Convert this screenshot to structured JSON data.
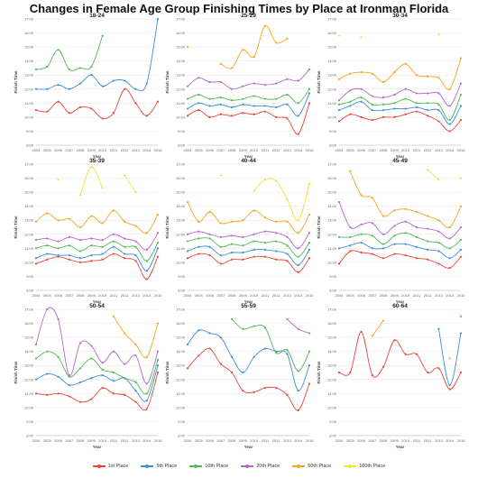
{
  "title": "Changes in Female Age Group Finishing Times by Place at Ironman Florida",
  "chart_data": {
    "type": "line",
    "x": [
      2004,
      2005,
      2006,
      2007,
      2008,
      2009,
      2010,
      2011,
      2012,
      2013,
      2014,
      2015
    ],
    "y_ticks": [
      "8:00",
      "9:00",
      "10:00",
      "11:00",
      "12:00",
      "13:00",
      "14:00",
      "15:00",
      "16:00",
      "17:00"
    ],
    "ylim": [
      8,
      17
    ],
    "xlabel": "Year",
    "ylabel": "Finish Time",
    "series_names": [
      "1st Place",
      "5th Place",
      "10th Place",
      "20th Place",
      "50th Place",
      "100th Place"
    ],
    "series_colors": [
      "#e8473b",
      "#3f8fd8",
      "#52b957",
      "#b46ac9",
      "#f5a623",
      "#f2e23a"
    ],
    "panels": [
      {
        "title": "18-24",
        "series": [
          [
            10.5,
            10.4,
            11.1,
            10.3,
            10.7,
            10.6,
            9.9,
            10.3,
            12.0,
            11.0,
            10.1,
            11.1
          ],
          [
            12.0,
            12.0,
            12.3,
            12.0,
            12.4,
            13.0,
            12.2,
            12.6,
            12.6,
            12.0,
            12.4,
            17.0
          ],
          [
            13.4,
            13.6,
            14.8,
            13.4,
            13.5,
            13.6,
            15.8,
            null,
            null,
            null,
            null,
            null
          ],
          [
            null,
            null,
            null,
            null,
            null,
            null,
            null,
            null,
            null,
            null,
            null,
            null
          ],
          [
            null,
            null,
            null,
            null,
            null,
            null,
            null,
            null,
            null,
            null,
            null,
            null
          ],
          [
            null,
            null,
            null,
            null,
            null,
            null,
            null,
            null,
            null,
            null,
            null,
            null
          ]
        ]
      },
      {
        "title": "25-29",
        "series": [
          [
            10.1,
            10.5,
            10.0,
            10.2,
            10.1,
            10.3,
            10.2,
            10.4,
            10.0,
            9.9,
            8.8,
            11.0
          ],
          [
            10.6,
            11.0,
            10.8,
            10.9,
            10.7,
            10.9,
            10.8,
            10.8,
            10.7,
            10.9,
            10.1,
            11.7
          ],
          [
            11.3,
            11.6,
            11.3,
            11.4,
            11.2,
            11.3,
            11.5,
            11.3,
            11.3,
            11.6,
            11.0,
            12.0
          ],
          [
            12.2,
            12.8,
            12.5,
            12.5,
            12.0,
            12.2,
            12.4,
            12.3,
            12.4,
            12.7,
            12.6,
            13.4
          ],
          [
            15.0,
            null,
            null,
            13.8,
            13.5,
            14.8,
            14.3,
            16.5,
            15.3,
            15.6,
            null,
            null
          ],
          [
            null,
            null,
            null,
            null,
            null,
            null,
            null,
            null,
            null,
            null,
            null,
            null
          ]
        ]
      },
      {
        "title": "30-34",
        "series": [
          [
            9.7,
            10.2,
            10.0,
            9.8,
            10.0,
            10.0,
            10.2,
            10.4,
            10.1,
            9.7,
            9.0,
            9.8
          ],
          [
            10.5,
            10.8,
            11.1,
            10.5,
            10.5,
            10.6,
            10.6,
            10.7,
            10.5,
            10.5,
            9.5,
            10.8
          ],
          [
            10.9,
            11.1,
            11.4,
            10.9,
            10.9,
            11.0,
            11.3,
            11.0,
            11.0,
            10.9,
            9.8,
            11.6
          ],
          [
            11.2,
            11.9,
            12.0,
            11.5,
            11.4,
            11.6,
            12.0,
            11.7,
            11.7,
            11.7,
            10.8,
            12.4
          ],
          [
            12.7,
            13.1,
            13.2,
            13.1,
            12.5,
            13.2,
            13.8,
            13.0,
            12.9,
            12.8,
            12.0,
            14.2
          ],
          [
            15.8,
            null,
            15.7,
            null,
            null,
            null,
            null,
            null,
            null,
            15.9,
            null,
            null
          ]
        ]
      },
      {
        "title": "35-39",
        "series": [
          [
            9.9,
            10.2,
            10.4,
            10.2,
            10.0,
            10.1,
            10.2,
            10.6,
            10.3,
            10.1,
            8.8,
            10.4
          ],
          [
            10.3,
            10.6,
            10.5,
            10.5,
            10.3,
            10.5,
            10.6,
            11.1,
            10.6,
            10.5,
            9.4,
            11.0
          ],
          [
            11.0,
            11.2,
            11.0,
            11.2,
            10.8,
            11.2,
            11.1,
            11.5,
            11.1,
            11.1,
            10.1,
            11.4
          ],
          [
            11.6,
            11.7,
            11.5,
            11.8,
            11.6,
            11.7,
            11.6,
            12.0,
            11.7,
            11.5,
            10.9,
            12.1
          ],
          [
            12.9,
            13.5,
            13.0,
            13.1,
            12.5,
            13.3,
            12.8,
            13.7,
            12.9,
            12.6,
            12.1,
            13.4
          ],
          [
            null,
            null,
            15.9,
            null,
            14.8,
            16.8,
            15.3,
            null,
            16.2,
            15.0,
            null,
            null
          ]
        ]
      },
      {
        "title": "40-44",
        "series": [
          [
            10.3,
            10.6,
            10.5,
            9.9,
            10.2,
            10.2,
            10.4,
            10.4,
            10.2,
            10.1,
            9.3,
            10.3
          ],
          [
            10.8,
            11.1,
            11.1,
            10.5,
            10.7,
            10.7,
            10.9,
            10.9,
            10.8,
            10.6,
            9.8,
            10.9
          ],
          [
            11.5,
            11.7,
            11.7,
            11.1,
            11.3,
            11.2,
            11.5,
            11.4,
            11.5,
            11.2,
            10.4,
            11.4
          ],
          [
            12.0,
            12.2,
            12.0,
            11.8,
            11.9,
            11.8,
            12.0,
            12.2,
            12.1,
            11.8,
            11.0,
            12.1
          ],
          [
            14.3,
            12.9,
            13.6,
            12.8,
            12.9,
            13.0,
            13.7,
            13.2,
            12.9,
            12.9,
            12.1,
            13.4
          ],
          [
            null,
            null,
            null,
            16.2,
            null,
            null,
            15.1,
            15.9,
            15.8,
            14.5,
            13.0,
            15.6
          ]
        ]
      },
      {
        "title": "45-49",
        "series": [
          [
            9.9,
            10.8,
            10.7,
            10.6,
            10.3,
            10.6,
            10.5,
            10.3,
            10.2,
            9.9,
            9.6,
            10.4
          ],
          [
            11.0,
            11.2,
            11.4,
            11.0,
            11.0,
            11.3,
            11.3,
            11.1,
            10.9,
            10.8,
            10.3,
            10.9
          ],
          [
            11.8,
            11.8,
            12.0,
            11.9,
            11.3,
            11.9,
            12.1,
            11.8,
            11.5,
            11.4,
            11.0,
            11.6
          ],
          [
            14.3,
            12.5,
            12.7,
            12.8,
            12.0,
            12.6,
            12.9,
            12.5,
            12.4,
            12.2,
            11.7,
            12.5
          ],
          [
            null,
            16.5,
            14.8,
            14.6,
            13.3,
            13.7,
            13.8,
            13.6,
            13.3,
            13.0,
            12.5,
            14.0
          ],
          [
            null,
            null,
            null,
            null,
            null,
            null,
            null,
            null,
            16.6,
            15.9,
            null,
            16.0
          ]
        ]
      },
      {
        "title": "50-54",
        "series": [
          [
            11.0,
            10.9,
            11.0,
            10.8,
            10.4,
            10.6,
            11.4,
            11.0,
            10.9,
            10.4,
            9.9,
            12.5
          ],
          [
            12.0,
            12.4,
            12.2,
            11.6,
            11.8,
            12.1,
            12.3,
            11.9,
            12.1,
            11.2,
            10.5,
            13.0
          ],
          [
            13.5,
            14.0,
            13.6,
            12.2,
            12.8,
            13.5,
            12.7,
            12.5,
            12.1,
            11.8,
            11.0,
            13.4
          ],
          [
            14.5,
            17.0,
            16.3,
            12.3,
            14.6,
            14.4,
            13.2,
            14.0,
            13.1,
            13.7,
            11.7,
            14.0
          ],
          [
            null,
            null,
            null,
            null,
            null,
            null,
            null,
            16.5,
            15.3,
            14.5,
            13.6,
            16.0
          ],
          [
            null,
            null,
            null,
            null,
            null,
            null,
            null,
            null,
            null,
            null,
            null,
            null
          ]
        ]
      },
      {
        "title": "55-59",
        "series": [
          [
            12.8,
            13.7,
            14.2,
            13.1,
            12.5,
            11.2,
            11.1,
            11.4,
            11.4,
            10.9,
            9.8,
            11.7
          ],
          [
            14.5,
            15.5,
            15.3,
            15.0,
            13.6,
            12.5,
            13.6,
            14.2,
            14.0,
            13.8,
            11.2,
            13.0
          ],
          [
            null,
            null,
            null,
            null,
            16.3,
            15.6,
            15.8,
            15.7,
            13.9,
            14.1,
            12.6,
            14.0
          ],
          [
            null,
            null,
            null,
            null,
            null,
            null,
            null,
            null,
            null,
            16.3,
            15.6,
            15.3
          ],
          [
            null,
            null,
            null,
            null,
            null,
            null,
            null,
            null,
            null,
            null,
            null,
            null
          ],
          [
            null,
            null,
            null,
            null,
            null,
            null,
            null,
            null,
            null,
            null,
            null,
            null
          ]
        ]
      },
      {
        "title": "60-64",
        "series": [
          [
            12.5,
            12.5,
            15.4,
            12.3,
            12.9,
            14.8,
            13.8,
            13.8,
            12.5,
            12.8,
            11.3,
            12.5
          ],
          [
            null,
            null,
            null,
            null,
            null,
            null,
            null,
            null,
            null,
            15.6,
            11.6,
            15.3
          ],
          [
            null,
            null,
            null,
            null,
            null,
            null,
            null,
            null,
            null,
            null,
            null,
            16.5
          ],
          [
            null,
            null,
            null,
            null,
            null,
            null,
            null,
            null,
            null,
            null,
            null,
            null
          ],
          [
            null,
            null,
            null,
            15.1,
            16.2,
            null,
            null,
            null,
            null,
            null,
            13.5,
            null
          ],
          [
            null,
            null,
            null,
            null,
            null,
            null,
            null,
            null,
            null,
            null,
            null,
            null
          ]
        ]
      }
    ]
  }
}
